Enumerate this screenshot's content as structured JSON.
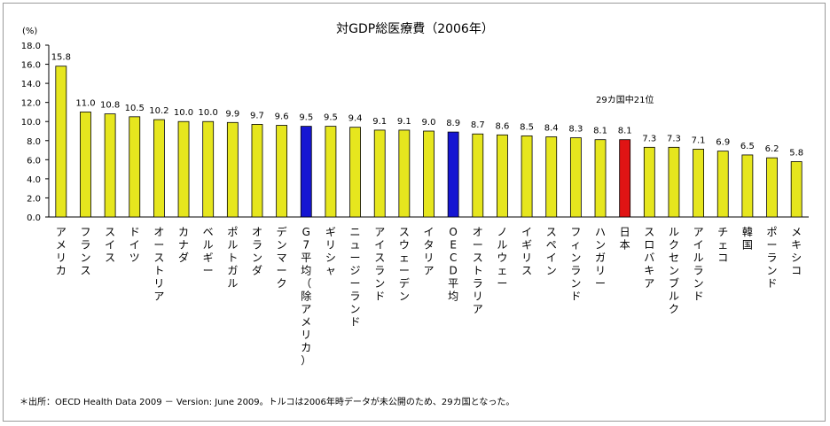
{
  "chart_data": {
    "type": "bar",
    "title": "対GDP総医療費（2006年）",
    "unit_label": "(%)",
    "ylim": [
      0,
      18
    ],
    "yticks": [
      "0.0",
      "2.0",
      "4.0",
      "6.0",
      "8.0",
      "10.0",
      "12.0",
      "14.0",
      "16.0",
      "18.0"
    ],
    "categories": [
      "アメリカ",
      "フランス",
      "スイス",
      "ドイツ",
      "オーストリア",
      "カナダ",
      "ベルギー",
      "ポルトガル",
      "オランダ",
      "デンマーク",
      "G7平均（除アメリカ）",
      "ギリシャ",
      "ニュージーランド",
      "アイスランド",
      "スウェーデン",
      "イタリア",
      "OECD平均",
      "オーストラリア",
      "ノルウェー",
      "イギリス",
      "スペイン",
      "フィンランド",
      "ハンガリー",
      "日本",
      "スロバキア",
      "ルクセンブルク",
      "アイルランド",
      "チェコ",
      "韓国",
      "ポーランド",
      "メキシコ"
    ],
    "values": [
      15.8,
      11.0,
      10.8,
      10.5,
      10.2,
      10.0,
      10.0,
      9.9,
      9.7,
      9.6,
      9.5,
      9.5,
      9.4,
      9.1,
      9.1,
      9.0,
      8.9,
      8.7,
      8.6,
      8.5,
      8.4,
      8.3,
      8.1,
      8.1,
      7.3,
      7.3,
      7.1,
      6.9,
      6.5,
      6.2,
      5.8
    ],
    "value_labels": [
      "15.8",
      "11.0",
      "10.8",
      "10.5",
      "10.2",
      "10.0",
      "10.0",
      "9.9",
      "9.7",
      "9.6",
      "9.5",
      "9.5",
      "9.4",
      "9.1",
      "9.1",
      "9.0",
      "8.9",
      "8.7",
      "8.6",
      "8.5",
      "8.4",
      "8.3",
      "8.1",
      "8.1",
      "7.3",
      "7.3",
      "7.1",
      "6.9",
      "6.5",
      "6.2",
      "5.8"
    ],
    "bar_kinds": [
      "c",
      "c",
      "c",
      "c",
      "c",
      "c",
      "c",
      "c",
      "c",
      "c",
      "avg",
      "c",
      "c",
      "c",
      "c",
      "c",
      "avg",
      "c",
      "c",
      "c",
      "c",
      "c",
      "c",
      "japan",
      "c",
      "c",
      "c",
      "c",
      "c",
      "c",
      "c"
    ],
    "colors": {
      "country": "#e6e61e",
      "average": "#1616d2",
      "japan": "#e01414",
      "outline": "#000000"
    },
    "annotation": "29カ国中21位",
    "grid": false
  },
  "footnote": "＊出所：OECD Health Data 2009 － Version: June 2009。トルコは2006年時データが未公開のため、29カ国となった。"
}
